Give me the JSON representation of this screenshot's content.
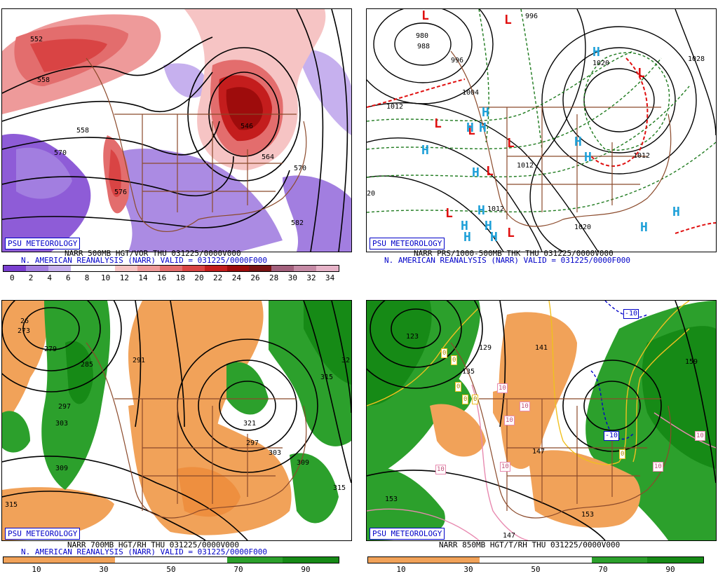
{
  "panels": [
    {
      "badge": "PSU METEOROLOGY",
      "caption1": "NARR 500MB HGT/VOR THU 031225/0000V000",
      "caption2": "N. AMERICAN REANALYSIS (NARR) VALID = 031225/0000F000",
      "labels": [
        "552",
        "558",
        "558",
        "564",
        "570",
        "576",
        "582",
        "576",
        "570",
        "558",
        "564",
        "546",
        "552"
      ],
      "colorbar": {
        "colors": [
          "#7a3fd0",
          "#a27ee0",
          "#c6b0ee",
          "#ffffff",
          "#ffffff",
          "#f6c4c4",
          "#ee9a9a",
          "#e36d6d",
          "#d94444",
          "#c41d1d",
          "#9e0c0c",
          "#7a1414",
          "#a2607c",
          "#c58aa5",
          "#e6b3c8"
        ],
        "ticks": [
          "0",
          "2",
          "4",
          "6",
          "8",
          "10",
          "12",
          "14",
          "16",
          "18",
          "20",
          "22",
          "24",
          "26",
          "28",
          "30",
          "32",
          "34"
        ]
      }
    },
    {
      "badge": "PSU METEOROLOGY",
      "caption1": "NARR PRS/1000-500MB THK THU 031225/0000V000",
      "caption2": "N. AMERICAN REANALYSIS (NARR) VALID = 031225/0000F000",
      "labels": [
        "996",
        "980",
        "988",
        "996",
        "1004",
        "1012",
        "1020",
        "1028",
        "1020",
        "1012",
        "1012",
        "1020",
        "1012",
        "20"
      ]
    },
    {
      "badge": "PSU METEOROLOGY",
      "caption1": "NARR 700MB HGT/RH THU 031225/0000V000",
      "caption2": "N. AMERICAN REANALYSIS (NARR) VALID = 031225/0000F000",
      "labels": [
        "273",
        "279",
        "285",
        "291",
        "297",
        "303",
        "309",
        "315",
        "321",
        "297",
        "303",
        "309",
        "315",
        "315",
        "32",
        "26"
      ],
      "colorbar": {
        "colors": [
          "#f1a259",
          "#f1a259",
          "#f1a259",
          "#f1a259",
          "#ffffff",
          "#ffffff",
          "#ffffff",
          "#ffffff",
          "#2ca02c",
          "#2ca02c",
          "#168a16",
          "#168a16"
        ],
        "ticks": [
          "10",
          "30",
          "50",
          "70",
          "90"
        ]
      }
    },
    {
      "badge": "PSU METEOROLOGY",
      "caption1": "NARR 850MB HGT/T/RH THU 031225/0000V000",
      "labels": [
        "123",
        "129",
        "135",
        "141",
        "147",
        "153",
        "153",
        "159",
        "147",
        "-10",
        "-10",
        "0",
        "0",
        "0",
        "0",
        "0",
        "0",
        "10",
        "10",
        "10",
        "10",
        "10",
        "10",
        "10"
      ],
      "colorbar": {
        "colors": [
          "#f1a259",
          "#f1a259",
          "#f1a259",
          "#f1a259",
          "#ffffff",
          "#ffffff",
          "#ffffff",
          "#ffffff",
          "#2ca02c",
          "#2ca02c",
          "#168a16",
          "#168a16"
        ],
        "ticks": [
          "10",
          "30",
          "50",
          "70",
          "90"
        ]
      }
    }
  ],
  "pressure_centers": {
    "high": "H",
    "low": "L"
  },
  "colors": {
    "badge_blue": "#0000c8",
    "map_border": "#8b4a2b",
    "high_blue": "#1ea0d8",
    "low_red": "#e01010"
  }
}
